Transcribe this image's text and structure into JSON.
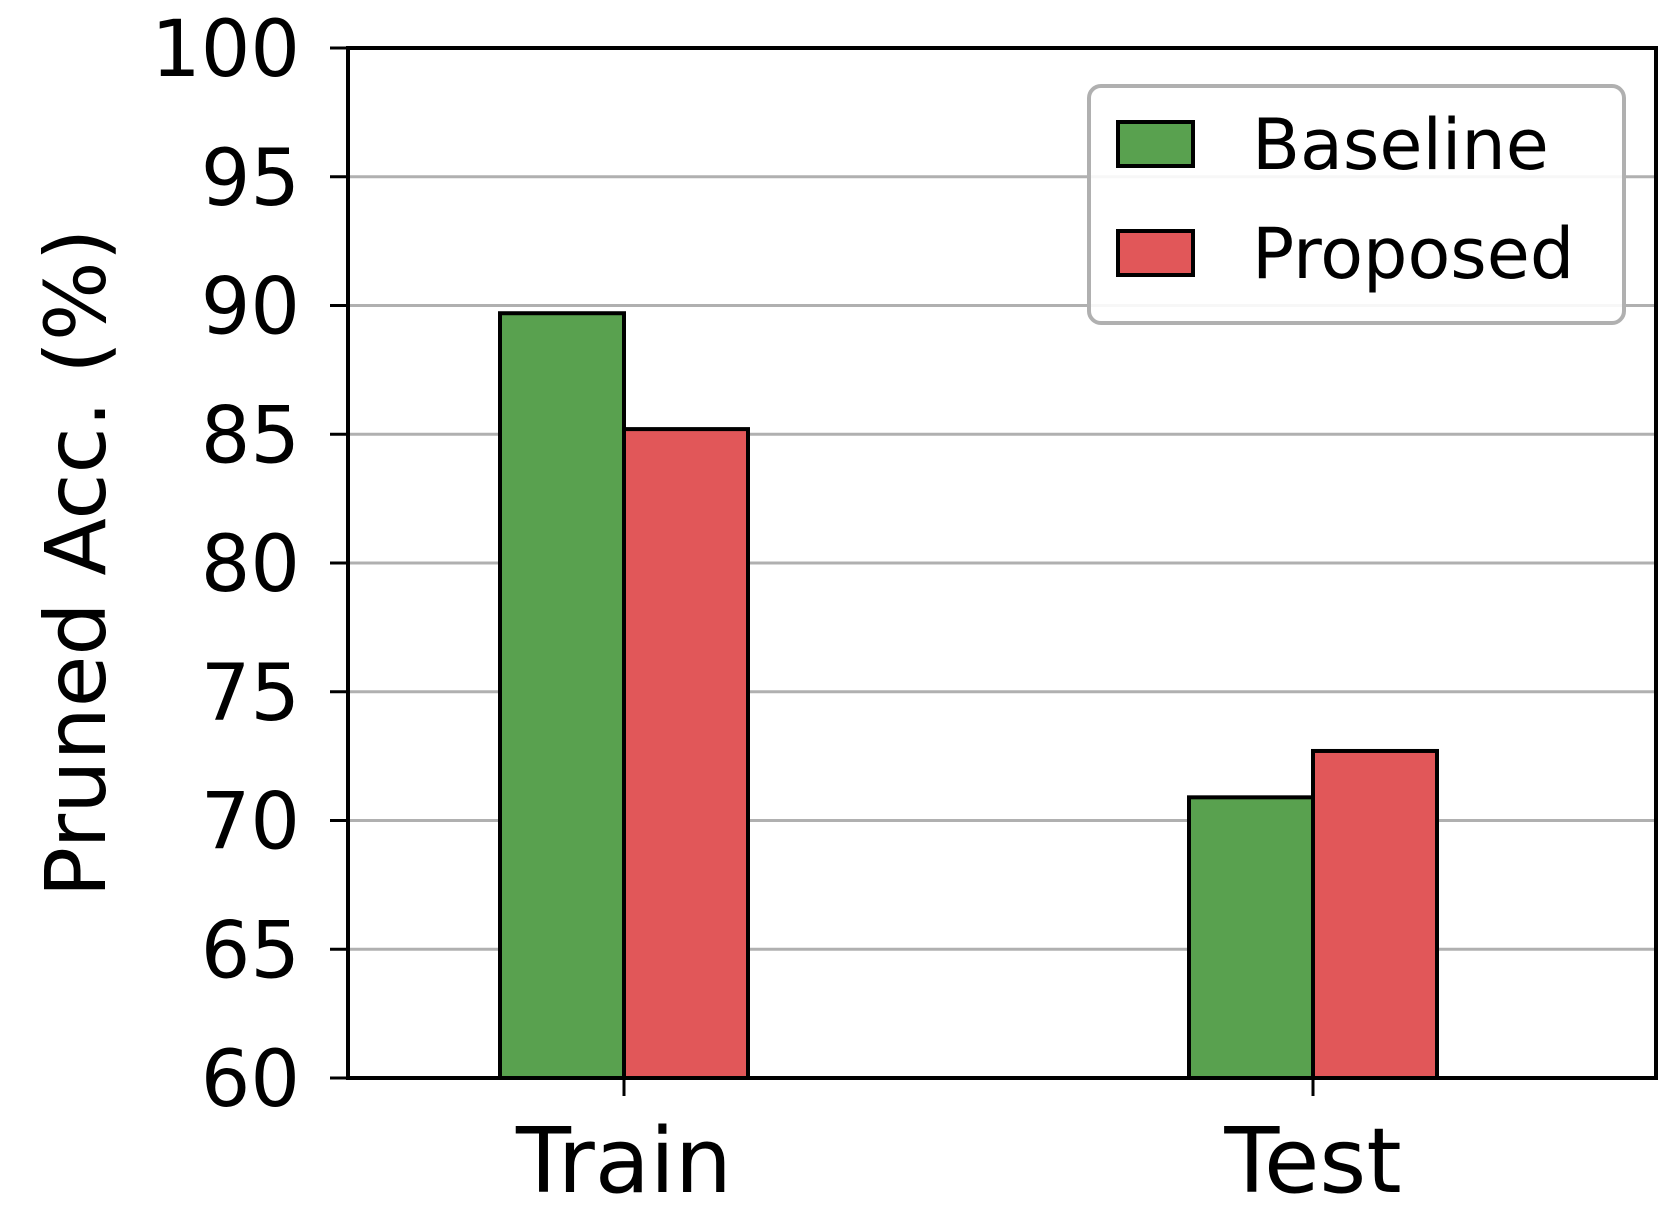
{
  "chart_data": {
    "type": "bar",
    "categories": [
      "Train",
      "Test"
    ],
    "series": [
      {
        "name": "Baseline",
        "values": [
          89.7,
          70.9
        ],
        "color": "#59a14f"
      },
      {
        "name": "Proposed",
        "values": [
          85.2,
          72.7
        ],
        "color": "#e15759"
      }
    ],
    "title": "",
    "xlabel": "",
    "ylabel": "Pruned Acc. (%)",
    "ylim": [
      60,
      100
    ],
    "yticks": [
      60,
      65,
      70,
      75,
      80,
      85,
      90,
      95,
      100
    ],
    "grid": "y",
    "legend_position": "top-right"
  }
}
